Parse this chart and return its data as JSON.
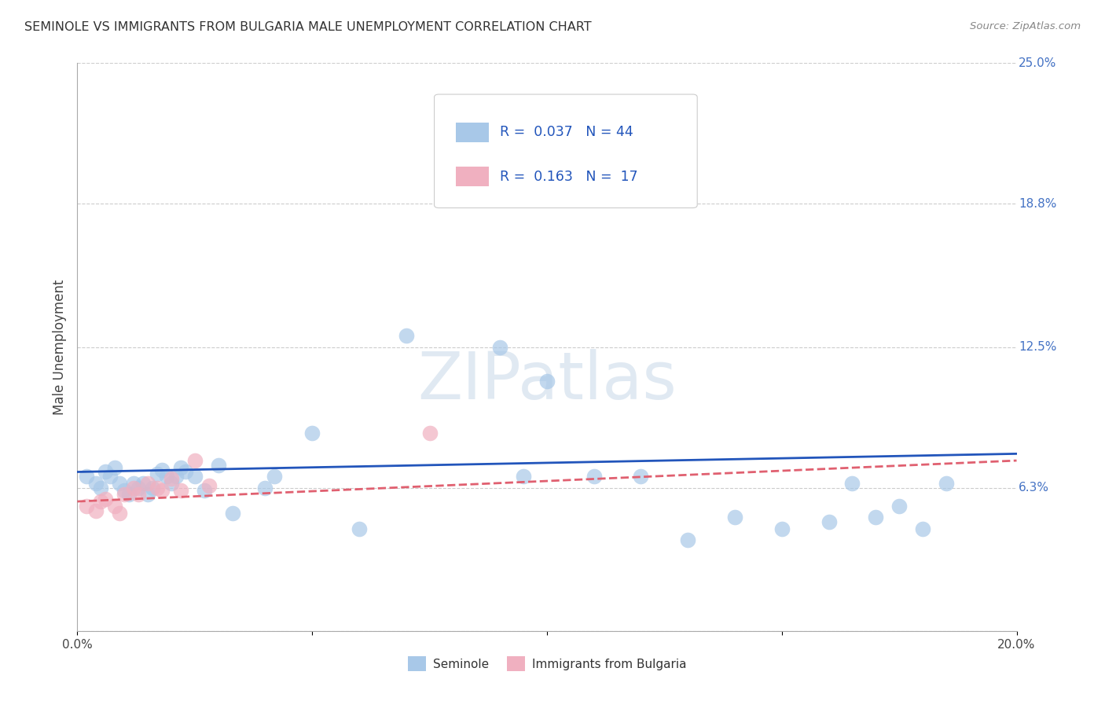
{
  "title": "SEMINOLE VS IMMIGRANTS FROM BULGARIA MALE UNEMPLOYMENT CORRELATION CHART",
  "source": "Source: ZipAtlas.com",
  "ylabel": "Male Unemployment",
  "xlim": [
    0.0,
    0.2
  ],
  "ylim": [
    0.0,
    0.25
  ],
  "ytick_vals_right": [
    0.25,
    0.188,
    0.125,
    0.063,
    0.0
  ],
  "ytick_labels_right": [
    "25.0%",
    "18.8%",
    "12.5%",
    "6.3%",
    ""
  ],
  "seminole_color": "#a8c8e8",
  "bulgaria_color": "#f0b0c0",
  "trend_seminole_color": "#2255bb",
  "trend_bulgaria_color": "#e06070",
  "background_color": "#ffffff",
  "seminole_x": [
    0.002,
    0.004,
    0.005,
    0.006,
    0.007,
    0.008,
    0.009,
    0.01,
    0.011,
    0.012,
    0.013,
    0.014,
    0.015,
    0.016,
    0.017,
    0.018,
    0.019,
    0.02,
    0.021,
    0.022,
    0.023,
    0.025,
    0.027,
    0.03,
    0.033,
    0.04,
    0.042,
    0.05,
    0.06,
    0.07,
    0.09,
    0.095,
    0.1,
    0.11,
    0.12,
    0.13,
    0.14,
    0.15,
    0.16,
    0.165,
    0.17,
    0.175,
    0.18,
    0.185
  ],
  "seminole_y": [
    0.068,
    0.065,
    0.063,
    0.07,
    0.068,
    0.072,
    0.065,
    0.062,
    0.06,
    0.065,
    0.063,
    0.065,
    0.06,
    0.063,
    0.069,
    0.071,
    0.068,
    0.065,
    0.068,
    0.072,
    0.07,
    0.068,
    0.062,
    0.073,
    0.052,
    0.063,
    0.068,
    0.087,
    0.045,
    0.13,
    0.125,
    0.068,
    0.11,
    0.068,
    0.068,
    0.04,
    0.05,
    0.045,
    0.048,
    0.065,
    0.05,
    0.055,
    0.045,
    0.065
  ],
  "bulgaria_x": [
    0.002,
    0.004,
    0.005,
    0.006,
    0.008,
    0.009,
    0.01,
    0.012,
    0.013,
    0.015,
    0.017,
    0.018,
    0.02,
    0.022,
    0.025,
    0.028,
    0.075
  ],
  "bulgaria_y": [
    0.055,
    0.053,
    0.057,
    0.058,
    0.055,
    0.052,
    0.06,
    0.063,
    0.06,
    0.065,
    0.063,
    0.062,
    0.067,
    0.062,
    0.075,
    0.064,
    0.087
  ]
}
